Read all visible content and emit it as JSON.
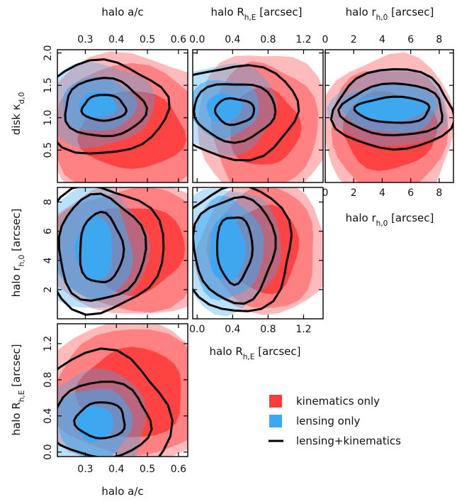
{
  "chart_data": {
    "type": "corner-contour",
    "legend": [
      {
        "key": "kin",
        "label": "kinematics only",
        "color": "#ff3b3b",
        "mark": "square"
      },
      {
        "key": "lens",
        "label": "lensing only",
        "color": "#3aa9f2",
        "mark": "square"
      },
      {
        "key": "both",
        "label": "lensing+kinematics",
        "color": "#000000",
        "mark": "line"
      }
    ],
    "params": {
      "ac": {
        "name": "halo a/c",
        "range": [
          0.21,
          0.63
        ],
        "ticks": [
          "0.3",
          "0.4",
          "0.5",
          "0.6"
        ],
        "tickvals": [
          0.3,
          0.4,
          0.5,
          0.6
        ]
      },
      "RhE": {
        "name": "halo R",
        "sub": "h,E",
        "unit": " [arcsec]",
        "range": [
          -0.05,
          1.42
        ],
        "ticks": [
          "0.0",
          "0.4",
          "0.8",
          "1.2"
        ],
        "tickvals": [
          0.0,
          0.4,
          0.8,
          1.2
        ]
      },
      "rh0": {
        "name": "halo r",
        "sub": "h,0",
        "unit": " [arcsec]",
        "range": [
          0.0,
          9.0
        ],
        "ticks": [
          "0",
          "2",
          "4",
          "6",
          "8"
        ],
        "tickvals": [
          0,
          2,
          4,
          6,
          8
        ],
        "ticks_left": [
          "2",
          "4",
          "6",
          "8"
        ],
        "tickvals_left": [
          2,
          4,
          6,
          8
        ]
      },
      "kd0": {
        "name": "disk κ",
        "sub": "d,0",
        "unit": "",
        "range": [
          0.0,
          2.05
        ],
        "ticks": [
          "0.5",
          "1.0",
          "1.5",
          "2.0"
        ],
        "tickvals": [
          0.5,
          1.0,
          1.5,
          2.0
        ]
      }
    },
    "panels": [
      {
        "x": "ac",
        "y": "kd0",
        "kin": {
          "cx": 0.45,
          "cy": 0.8,
          "rx": [
            0.17,
            0.26,
            0.3
          ],
          "ry": [
            0.6,
            1.0,
            1.2
          ]
        },
        "lens": {
          "cx": 0.34,
          "cy": 1.2,
          "rx": [
            0.06,
            0.12,
            0.18
          ],
          "ry": [
            0.2,
            0.42,
            0.65
          ]
        },
        "both": {
          "cx": 0.36,
          "cy": 1.15,
          "rx": [
            0.07,
            0.13,
            0.2
          ],
          "ry": [
            0.2,
            0.45,
            0.72
          ]
        }
      },
      {
        "x": "RhE",
        "y": "kd0",
        "kin": {
          "cx": 0.75,
          "cy": 0.85,
          "rx": [
            0.4,
            0.6,
            0.75
          ],
          "ry": [
            0.6,
            1.0,
            1.2
          ]
        },
        "lens": {
          "cx": 0.3,
          "cy": 1.15,
          "rx": [
            0.2,
            0.4,
            0.6
          ],
          "ry": [
            0.22,
            0.45,
            0.7
          ]
        },
        "both": {
          "cx": 0.42,
          "cy": 1.1,
          "rx": [
            0.22,
            0.46,
            0.72
          ],
          "ry": [
            0.2,
            0.45,
            0.72
          ]
        }
      },
      {
        "x": "rh0",
        "y": "kd0",
        "kin": {
          "cx": 4.5,
          "cy": 0.8,
          "rx": [
            3.3,
            4.1,
            4.6
          ],
          "ry": [
            0.6,
            1.0,
            1.2
          ]
        },
        "lens": {
          "cx": 4.6,
          "cy": 1.15,
          "rx": [
            2.5,
            3.4,
            4.2
          ],
          "ry": [
            0.2,
            0.38,
            0.6
          ]
        },
        "both": {
          "cx": 4.8,
          "cy": 1.12,
          "rx": [
            2.6,
            3.6,
            4.2
          ],
          "ry": [
            0.2,
            0.4,
            0.62
          ]
        }
      },
      {
        "x": "ac",
        "y": "rh0",
        "kin": {
          "cx": 0.45,
          "cy": 4.8,
          "rx": [
            0.17,
            0.26,
            0.3
          ],
          "ry": [
            3.0,
            4.2,
            4.6
          ]
        },
        "lens": {
          "cx": 0.33,
          "cy": 4.8,
          "rx": [
            0.06,
            0.12,
            0.17
          ],
          "ry": [
            2.2,
            3.6,
            4.3
          ]
        },
        "both": {
          "cx": 0.35,
          "cy": 4.8,
          "rx": [
            0.07,
            0.14,
            0.2
          ],
          "ry": [
            2.4,
            3.6,
            4.3
          ]
        }
      },
      {
        "x": "RhE",
        "y": "rh0",
        "kin": {
          "cx": 0.75,
          "cy": 4.8,
          "rx": [
            0.4,
            0.6,
            0.75
          ],
          "ry": [
            3.0,
            4.2,
            4.6
          ]
        },
        "lens": {
          "cx": 0.34,
          "cy": 4.8,
          "rx": [
            0.2,
            0.4,
            0.6
          ],
          "ry": [
            2.3,
            3.5,
            4.3
          ]
        },
        "both": {
          "cx": 0.42,
          "cy": 4.8,
          "rx": [
            0.2,
            0.46,
            0.66
          ],
          "ry": [
            2.3,
            3.6,
            4.3
          ]
        }
      },
      {
        "x": "ac",
        "y": "RhE",
        "kin": {
          "cx": 0.45,
          "cy": 0.65,
          "rx": [
            0.17,
            0.26,
            0.3
          ],
          "ry": [
            0.5,
            0.7,
            0.78
          ]
        },
        "lens": {
          "cx": 0.33,
          "cy": 0.32,
          "rx": [
            0.06,
            0.12,
            0.17
          ],
          "ry": [
            0.2,
            0.4,
            0.6
          ]
        },
        "both": {
          "cx": 0.35,
          "cy": 0.35,
          "rx": [
            0.08,
            0.16,
            0.22
          ],
          "ry": [
            0.2,
            0.42,
            0.75
          ]
        }
      }
    ]
  }
}
